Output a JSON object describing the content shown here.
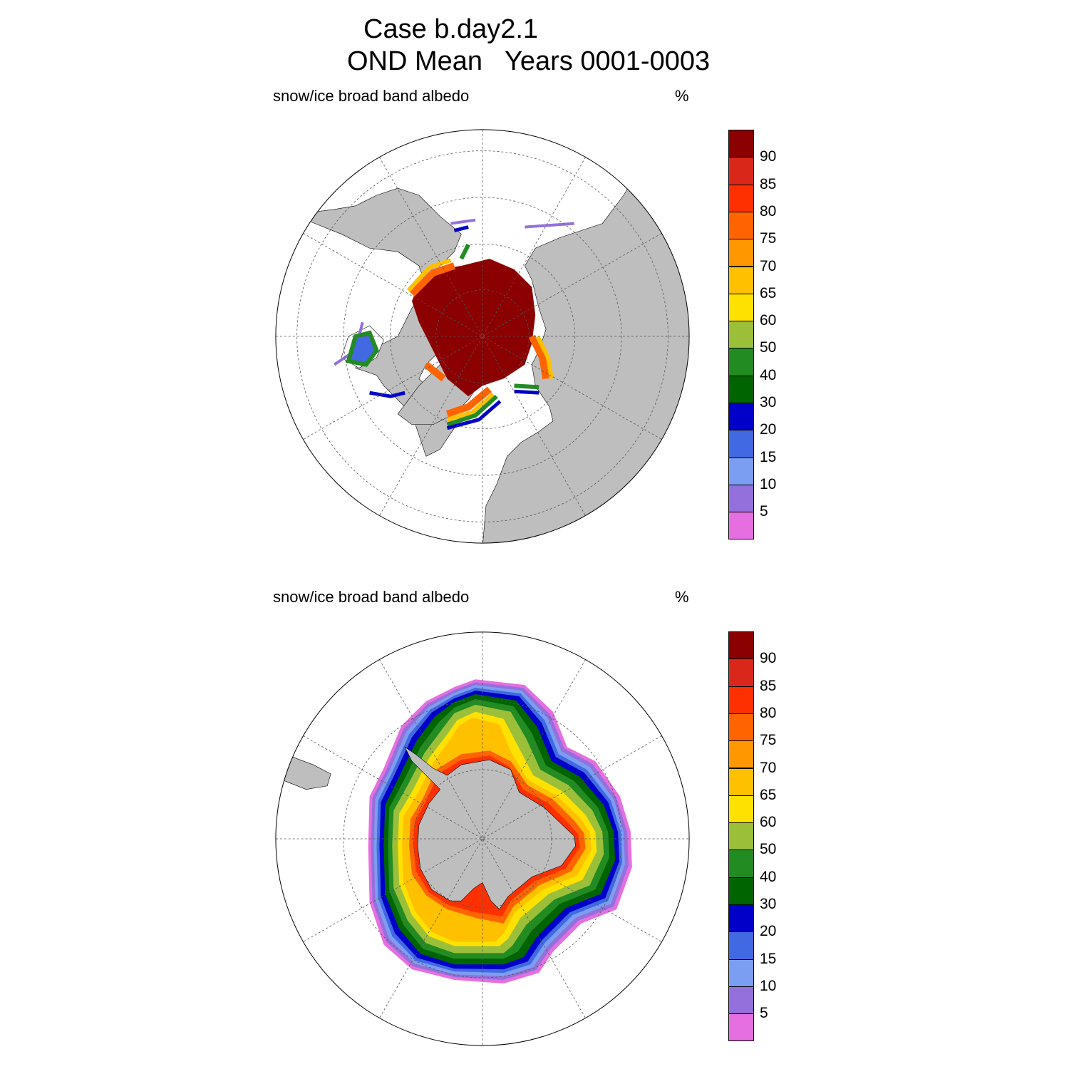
{
  "header": {
    "case_title": "Case b.day2.1",
    "period_title": "OND Mean   Years 0001-0003"
  },
  "colors": {
    "land": "#bebebe",
    "ocean": "#ffffff",
    "grid": "#555555",
    "levels": [
      "#e56fe0",
      "#9370db",
      "#7b9ef2",
      "#4169e1",
      "#0000c8",
      "#006400",
      "#228b22",
      "#9cbf3a",
      "#ffe100",
      "#ffc000",
      "#ff9800",
      "#ff6400",
      "#ff3000",
      "#d9281a",
      "#8b0000"
    ]
  },
  "colorbar": {
    "tick_labels": [
      "5",
      "10",
      "15",
      "20",
      "30",
      "40",
      "50",
      "60",
      "65",
      "70",
      "75",
      "80",
      "85",
      "90"
    ]
  },
  "panels": [
    {
      "id": "north",
      "hemisphere": "Arctic",
      "variable_label": "snow/ice broad band albedo",
      "units_label": "%"
    },
    {
      "id": "south",
      "hemisphere": "Antarctic",
      "variable_label": "snow/ice broad band albedo",
      "units_label": "%"
    }
  ]
}
